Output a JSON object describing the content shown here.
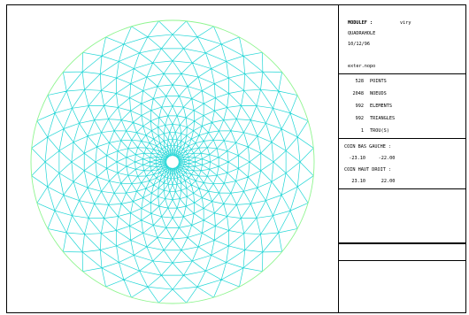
{
  "header": {
    "module_label": "MODULEF :",
    "user": "viry",
    "project": "QUADRAHOLE",
    "date": "10/12/96",
    "file": "exter.nopo"
  },
  "stats": [
    {
      "value": "528",
      "label": "POINTS"
    },
    {
      "value": "2048",
      "label": "NOEUDS"
    },
    {
      "value": "992",
      "label": "ELEMENTS"
    },
    {
      "value": "992",
      "label": "TRIANGLES"
    },
    {
      "value": "1",
      "label": "TROU(S)"
    }
  ],
  "corners": {
    "bottom_left_label": "COIN BAS GAUCHE :",
    "bottom_left": {
      "x": "-23.10",
      "y": "-22.00"
    },
    "top_right_label": "COIN HAUT DROIT :",
    "top_right": {
      "x": "23.10",
      "y": "22.00"
    }
  },
  "colors": {
    "mesh": "#22d6d6",
    "boundary": "#8ff58f",
    "frame": "#000000"
  },
  "mesh": {
    "outer_radius": 22.0,
    "hole_radius": 1.0,
    "rings": 15,
    "sectors": 32
  }
}
